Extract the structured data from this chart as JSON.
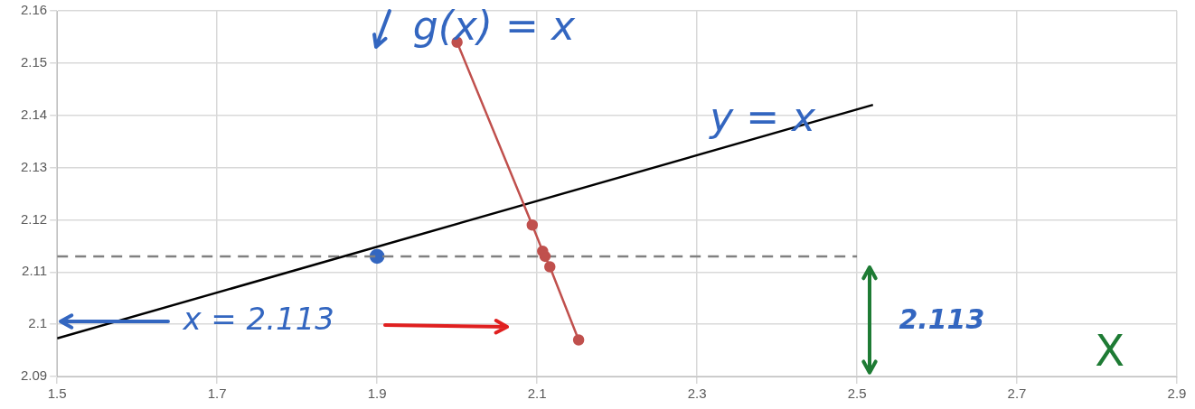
{
  "chart_data": {
    "type": "line",
    "xlim": [
      1.5,
      2.9
    ],
    "xticks": [
      1.5,
      1.7,
      1.9,
      2.1,
      2.3,
      2.5,
      2.7,
      2.9
    ],
    "ylim": [
      2.09,
      2.16
    ],
    "yticks": [
      2.09,
      2.1,
      2.11,
      2.12,
      2.13,
      2.14,
      2.15,
      2.16
    ],
    "grid": true,
    "legend": false,
    "series": [
      {
        "color": "#c0504d",
        "marker": "circle",
        "x": [
          2.0,
          2.094,
          2.107,
          2.11,
          2.116,
          2.152
        ],
        "values": [
          2.154,
          2.119,
          2.114,
          2.113,
          2.111,
          2.097
        ]
      },
      {
        "color": "#000000",
        "marker": "none",
        "x": [
          1.5,
          2.52
        ],
        "values": [
          2.0973,
          2.142
        ]
      },
      {
        "color": "#808080",
        "marker": "none",
        "line_style": "dashed",
        "x": [
          1.5,
          2.5
        ],
        "values": [
          2.113,
          2.113
        ]
      },
      {
        "type": "scatter",
        "color": "#3366c0",
        "marker": "circle",
        "x": [
          1.9
        ],
        "values": [
          2.113
        ]
      }
    ],
    "annotations": [
      "g(x) = x",
      "y = x",
      "x = 2.113",
      "2.113",
      "X"
    ]
  }
}
